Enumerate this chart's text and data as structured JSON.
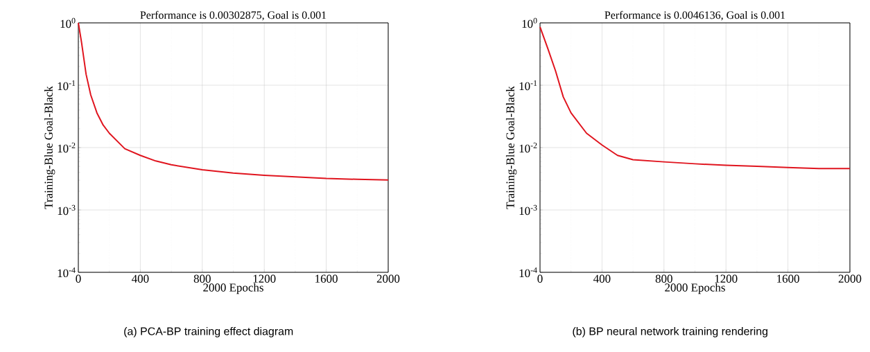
{
  "chart_data": [
    {
      "type": "line",
      "title": "Performance is 0.00302875, Goal is 0.001",
      "xlabel": "2000 Epochs",
      "ylabel": "Training-Blue Goal-Black",
      "annotations": [
        "(a) PCA-BP training effect diagram"
      ],
      "log": "y",
      "grid": true,
      "xlim": [
        0,
        2000
      ],
      "ylim": [
        0.0001,
        1
      ],
      "xticks": [
        0,
        400,
        800,
        1200,
        1600,
        2000
      ],
      "yticks": [
        {
          "value": 0.0001,
          "label": "10$^{-4}$"
        },
        {
          "value": 0.001,
          "label": "10$^{-3}$"
        },
        {
          "value": 0.01,
          "label": "10$^{-2}$"
        },
        {
          "value": 0.1,
          "label": "10$^{-1}$"
        },
        {
          "value": 1,
          "label": "10$^{0}$"
        }
      ],
      "x": [
        0,
        20,
        50,
        80,
        120,
        160,
        200,
        300,
        400,
        500,
        600,
        800,
        1000,
        1200,
        1400,
        1600,
        1800,
        2000
      ],
      "series": [
        {
          "color": "#e0141e",
          "values": [
            1,
            0.5,
            0.15,
            0.07,
            0.036,
            0.023,
            0.017,
            0.0096,
            0.0075,
            0.0061,
            0.0053,
            0.0044,
            0.0039,
            0.0036,
            0.0034,
            0.0032,
            0.0031,
            0.00302875
          ]
        }
      ]
    },
    {
      "type": "line",
      "title": "Performance is 0.0046136, Goal is 0.001",
      "xlabel": "2000 Epochs",
      "ylabel": "Training-Blue Goal-Black",
      "annotations": [
        "(b) BP neural network training rendering"
      ],
      "log": "y",
      "grid": true,
      "xlim": [
        0,
        2000
      ],
      "ylim": [
        0.0001,
        1
      ],
      "xticks": [
        0,
        400,
        800,
        1200,
        1600,
        2000
      ],
      "yticks": [
        {
          "value": 0.0001,
          "label": "10$^{-4}$"
        },
        {
          "value": 0.001,
          "label": "10$^{-3}$"
        },
        {
          "value": 0.01,
          "label": "10$^{-2}$"
        },
        {
          "value": 0.1,
          "label": "10$^{-1}$"
        },
        {
          "value": 1,
          "label": "10$^{0}$"
        }
      ],
      "x": [
        0,
        50,
        100,
        150,
        200,
        300,
        400,
        500,
        600,
        800,
        1000,
        1200,
        1400,
        1600,
        1800,
        2000
      ],
      "series": [
        {
          "color": "#e0141e",
          "values": [
            0.86,
            0.39,
            0.17,
            0.065,
            0.036,
            0.017,
            0.011,
            0.0075,
            0.0064,
            0.0059,
            0.0055,
            0.0052,
            0.005,
            0.0048,
            0.0046,
            0.0046136
          ]
        }
      ]
    }
  ]
}
